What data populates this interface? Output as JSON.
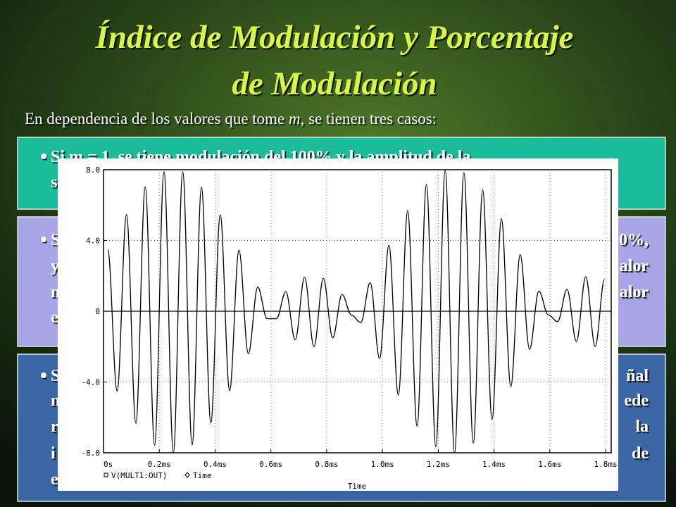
{
  "slide": {
    "title_lines": [
      "Índice de Modulación y Porcentaje",
      "de Modulación"
    ],
    "intro": [
      "En dependencia de los valores que tome ",
      "m",
      ", se tienen tres casos:"
    ],
    "boxes": [
      {
        "color": "#1bbc9a",
        "lines": [
          {
            "left": "Si m = 1, se tiene modulación del 100% y la amplitud de la"
          },
          {
            "left": "s"
          }
        ]
      },
      {
        "color": "#a6a6e6",
        "lines": [
          {
            "left": "S",
            "right": "0%,"
          },
          {
            "left": "y",
            "right": "alor"
          },
          {
            "left": "n",
            "right": "alor"
          },
          {
            "left": "e"
          }
        ]
      },
      {
        "color": "#3b66a5",
        "lines": [
          {
            "left": "S",
            "right": "ñal"
          },
          {
            "left": "n",
            "right": "ede"
          },
          {
            "left": "r",
            "right": "la"
          },
          {
            "left": "i",
            "right": "de"
          },
          {
            "left": "e"
          }
        ]
      }
    ]
  },
  "chart_data": {
    "type": "line",
    "x_label": "Time",
    "legend_x": "Time",
    "x": [
      0.0152,
      0.0488,
      0.0824,
      0.116,
      0.1496,
      0.1832,
      0.2168,
      0.2504,
      0.284,
      0.3176,
      0.3512,
      0.3848,
      0.4184,
      0.452,
      0.4856,
      0.5192,
      0.5528,
      0.5864,
      0.62,
      0.6536,
      0.6872,
      0.7208,
      0.7544,
      0.788,
      0.8216,
      0.8552,
      0.8888,
      0.9224,
      0.956,
      0.9896,
      1.0232,
      1.0568,
      1.0904,
      1.124,
      1.1576,
      1.1912,
      1.2248,
      1.2584,
      1.292,
      1.3256,
      1.3592,
      1.3928,
      1.4264,
      1.46,
      1.4936,
      1.5272,
      1.5608,
      1.5944,
      1.628,
      1.6616,
      1.6952,
      1.7288,
      1.7624,
      1.796
    ],
    "series": [
      {
        "name": "V(MULT1:OUT)",
        "color": "#000000",
        "values": [
          3.48,
          -4.51,
          5.47,
          -6.33,
          7.04,
          -7.57,
          7.89,
          -8.0,
          7.89,
          -7.56,
          7.02,
          -6.31,
          5.45,
          -4.49,
          3.45,
          -2.4,
          1.37,
          -0.42,
          -0.42,
          1.11,
          -1.62,
          1.92,
          -2.0,
          1.86,
          -1.5,
          0.95,
          -0.22,
          -0.64,
          1.62,
          -2.67,
          3.72,
          -4.74,
          5.68,
          -6.5,
          7.17,
          -7.66,
          7.95,
          -7.99,
          7.83,
          -7.45,
          6.87,
          -6.12,
          5.23,
          -4.25,
          3.2,
          -2.15,
          1.14,
          -0.21,
          -0.59,
          1.24,
          -1.71,
          1.95,
          -1.99,
          1.8
        ]
      }
    ],
    "xlim": [
      0,
      1.82
    ],
    "ylim": [
      -8,
      8
    ],
    "xticks": [
      {
        "value": 0,
        "label": "0s"
      },
      {
        "value": 0.2,
        "label": "0.2ms"
      },
      {
        "value": 0.4,
        "label": "0.4ms"
      },
      {
        "value": 0.6,
        "label": "0.6ms"
      },
      {
        "value": 0.8,
        "label": "0.8ms"
      },
      {
        "value": 1.0,
        "label": "1.0ms"
      },
      {
        "value": 1.2,
        "label": "1.2ms"
      },
      {
        "value": 1.4,
        "label": "1.4ms"
      },
      {
        "value": 1.6,
        "label": "1.6ms"
      },
      {
        "value": 1.8,
        "label": "1.8ms"
      }
    ],
    "yticks": [
      {
        "value": 8,
        "label": "8.0"
      },
      {
        "value": 4,
        "label": "4.0"
      },
      0,
      {
        "value": -4,
        "label": "-4.0"
      },
      {
        "value": -8,
        "label": "-8.0"
      }
    ],
    "grid": true
  }
}
